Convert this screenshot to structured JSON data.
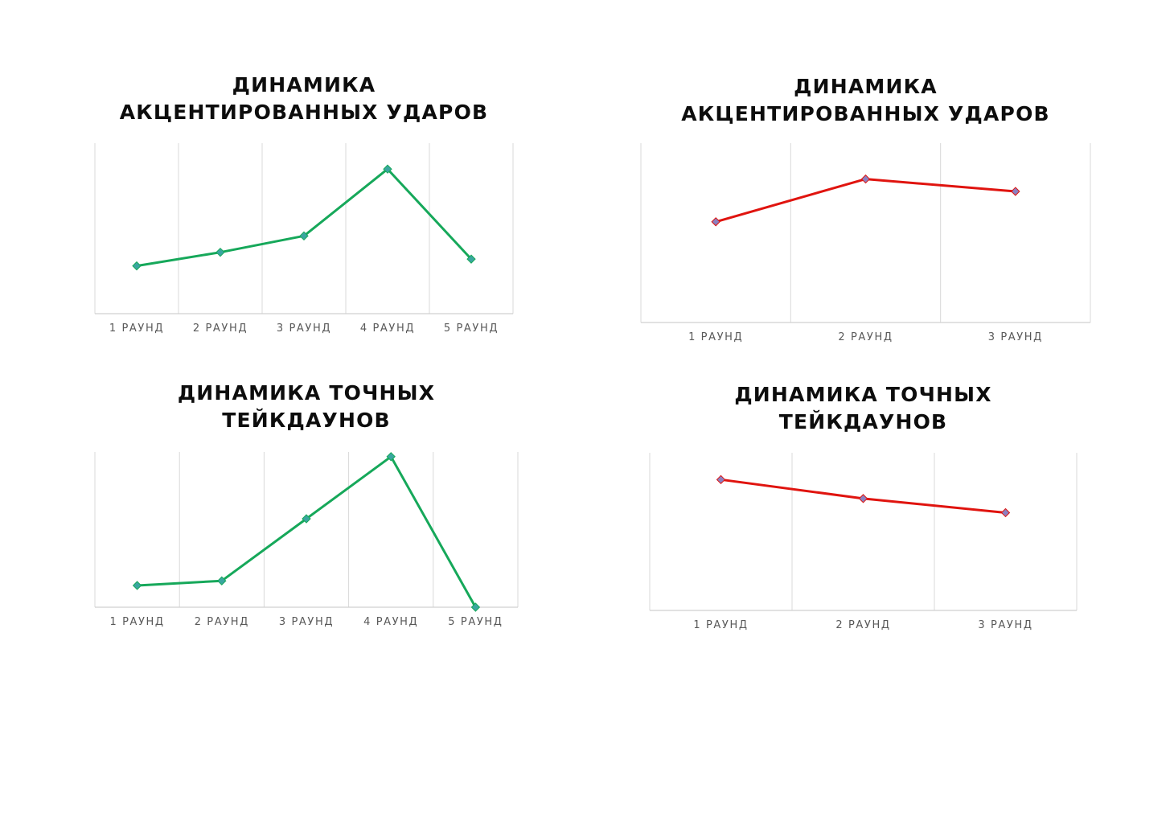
{
  "chart_data": [
    {
      "type": "line",
      "title_lines": [
        "ДИНАМИКА",
        "АКЦЕНТИРОВАННЫХ УДАРОВ"
      ],
      "categories": [
        "1 РАУНД",
        "2 РАУНД",
        "3 РАУНД",
        "4 РАУНД",
        "5 РАУНД"
      ],
      "series": [
        {
          "values": [
            2,
            3,
            4.2,
            9.1,
            2.5
          ],
          "color": "#16a85a",
          "marker_color": "#3aa6a0"
        }
      ],
      "ylim": [
        -1.5,
        11
      ],
      "grid": "vertical"
    },
    {
      "type": "line",
      "title_lines": [
        "ДИНАМИКА",
        "АКЦЕНТИРОВАННЫХ УДАРОВ"
      ],
      "categories": [
        "1 РАУНД",
        "2 РАУНД",
        "3 РАУНД"
      ],
      "series": [
        {
          "values": [
            6.3,
            9.4,
            8.5
          ],
          "color": "#e0140f",
          "marker_color": "#8b80c0"
        }
      ],
      "ylim": [
        -1,
        12
      ],
      "grid": "vertical"
    },
    {
      "type": "line",
      "title_lines": [
        "ДИНАМИКА ТОЧНЫХ",
        "ТЕЙКДАУНОВ"
      ],
      "categories": [
        "1 РАУНД",
        "2 РАУНД",
        "3 РАУНД",
        "4 РАУНД",
        "5 РАУНД"
      ],
      "series": [
        {
          "values": [
            1.4,
            1.7,
            5.7,
            9.7,
            0
          ],
          "color": "#16a85a",
          "marker_color": "#3aa6a0"
        }
      ],
      "ylim": [
        0,
        10
      ],
      "grid": "vertical"
    },
    {
      "type": "line",
      "title_lines": [
        "ДИНАМИКА ТОЧНЫХ",
        "ТЕЙКДАУНОВ"
      ],
      "categories": [
        "1 РАУНД",
        "2 РАУНД",
        "3 РАУНД"
      ],
      "series": [
        {
          "values": [
            8.3,
            7.1,
            6.2
          ],
          "color": "#e0140f",
          "marker_color": "#8b80c0"
        }
      ],
      "ylim": [
        0,
        10
      ],
      "grid": "vertical"
    }
  ]
}
